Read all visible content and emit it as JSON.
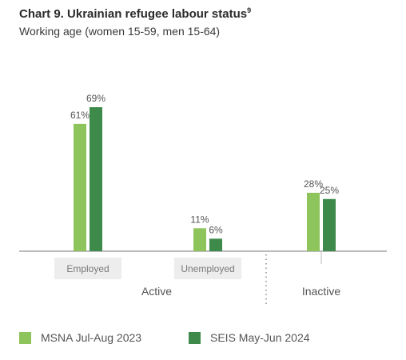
{
  "header": {
    "title": "Chart 9. Ukrainian refugee labour status",
    "title_footnote": "9",
    "subtitle": "Working age (women 15-59, men 15-64)"
  },
  "colors": {
    "series1": "#8dc45c",
    "series2": "#3e8a4b",
    "category_label_bg": "#ededed",
    "axis": "#777777",
    "text": "#555555"
  },
  "chart_data": {
    "type": "bar",
    "categories": [
      "Employed",
      "Unemployed",
      "Inactive"
    ],
    "groups": [
      {
        "label": "Active",
        "categories": [
          "Employed",
          "Unemployed"
        ]
      },
      {
        "label": "Inactive",
        "categories": [
          "Inactive"
        ]
      }
    ],
    "series": [
      {
        "name": "MSNA Jul-Aug 2023",
        "values": [
          61,
          11,
          28
        ],
        "labels": [
          "61%",
          "11%",
          "28%"
        ]
      },
      {
        "name": "SEIS May-Jun 2024",
        "values": [
          69,
          6,
          25
        ],
        "labels": [
          "69%",
          "6%",
          "25%"
        ]
      }
    ],
    "unit": "%",
    "ylim": [
      0,
      69
    ],
    "grid": false,
    "legend_position": "bottom"
  },
  "legend": {
    "items": [
      {
        "label": "MSNA Jul-Aug 2023"
      },
      {
        "label": "SEIS May-Jun 2024"
      }
    ]
  }
}
